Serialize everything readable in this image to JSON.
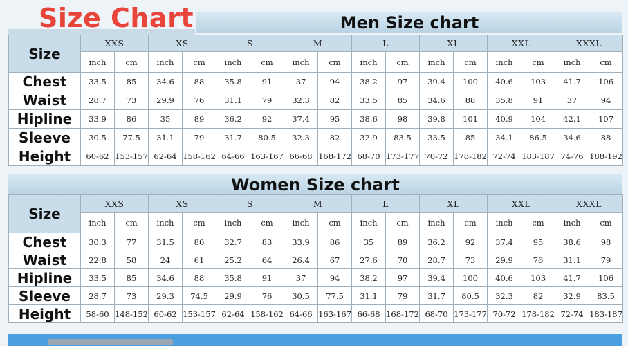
{
  "page_title": "Size Chart",
  "size_labels": [
    "XXS",
    "XS",
    "S",
    "M",
    "L",
    "XL",
    "XXL",
    "XXXL"
  ],
  "units": [
    "inch",
    "cm"
  ],
  "size_header": "Size",
  "men": {
    "title": "Men Size chart",
    "rows": [
      {
        "label": "Chest",
        "values": [
          "33.5",
          "85",
          "34.6",
          "88",
          "35.8",
          "91",
          "37",
          "94",
          "38.2",
          "97",
          "39.4",
          "100",
          "40.6",
          "103",
          "41.7",
          "106"
        ]
      },
      {
        "label": "Waist",
        "values": [
          "28.7",
          "73",
          "29.9",
          "76",
          "31.1",
          "79",
          "32.3",
          "82",
          "33.5",
          "85",
          "34.6",
          "88",
          "35.8",
          "91",
          "37",
          "94"
        ]
      },
      {
        "label": "Hipline",
        "values": [
          "33.9",
          "86",
          "35",
          "89",
          "36.2",
          "92",
          "37.4",
          "95",
          "38.6",
          "98",
          "39.8",
          "101",
          "40.9",
          "104",
          "42.1",
          "107"
        ]
      },
      {
        "label": "Sleeve",
        "values": [
          "30.5",
          "77.5",
          "31.1",
          "79",
          "31.7",
          "80.5",
          "32.3",
          "82",
          "32.9",
          "83.5",
          "33.5",
          "85",
          "34.1",
          "86.5",
          "34.6",
          "88"
        ]
      },
      {
        "label": "Height",
        "values": [
          "60-62",
          "153-157",
          "62-64",
          "158-162",
          "64-66",
          "163-167",
          "66-68",
          "168-172",
          "68-70",
          "173-177",
          "70-72",
          "178-182",
          "72-74",
          "183-187",
          "74-76",
          "188-192"
        ]
      }
    ]
  },
  "women": {
    "title": "Women Size chart",
    "rows": [
      {
        "label": "Chest",
        "values": [
          "30.3",
          "77",
          "31.5",
          "80",
          "32.7",
          "83",
          "33.9",
          "86",
          "35",
          "89",
          "36.2",
          "92",
          "37.4",
          "95",
          "38.6",
          "98"
        ]
      },
      {
        "label": "Waist",
        "values": [
          "22.8",
          "58",
          "24",
          "61",
          "25.2",
          "64",
          "26.4",
          "67",
          "27.6",
          "70",
          "28.7",
          "73",
          "29.9",
          "76",
          "31.1",
          "79"
        ]
      },
      {
        "label": "Hipline",
        "values": [
          "33.5",
          "85",
          "34.6",
          "88",
          "35.8",
          "91",
          "37",
          "94",
          "38.2",
          "97",
          "39.4",
          "100",
          "40.6",
          "103",
          "41.7",
          "106"
        ]
      },
      {
        "label": "Sleeve",
        "values": [
          "28.7",
          "73",
          "29.3",
          "74.5",
          "29.9",
          "76",
          "30.5",
          "77.5",
          "31.1",
          "79",
          "31.7",
          "80.5",
          "32.3",
          "82",
          "32.9",
          "83.5"
        ]
      },
      {
        "label": "Height",
        "values": [
          "58-60",
          "148-152",
          "60-62",
          "153-157",
          "62-64",
          "158-162",
          "64-66",
          "163-167",
          "66-68",
          "168-172",
          "68-70",
          "173-177",
          "70-72",
          "178-182",
          "72-74",
          "183-187"
        ]
      }
    ]
  }
}
